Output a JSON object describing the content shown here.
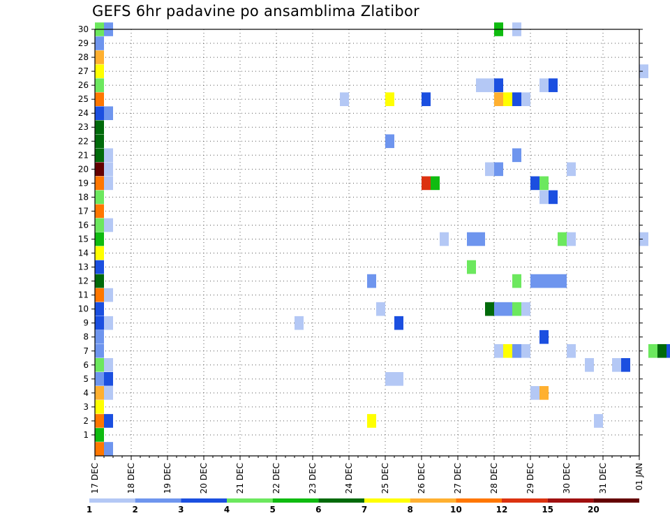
{
  "title": "GEFS 6hr padavine po ansamblima Zlatibor",
  "chart_data": {
    "type": "heatmap",
    "title": "GEFS 6hr padavine po ansamblima Zlatibor",
    "ylim": [
      0,
      30
    ],
    "y_ticks": [
      1,
      2,
      3,
      4,
      5,
      6,
      7,
      8,
      9,
      10,
      11,
      12,
      13,
      14,
      15,
      16,
      17,
      18,
      19,
      20,
      21,
      22,
      23,
      24,
      25,
      26,
      27,
      28,
      29,
      30
    ],
    "x_ticks": [
      "17 DEC",
      "18 DEC",
      "19 DEC",
      "20 DEC",
      "21 DEC",
      "22 DEC",
      "23 DEC",
      "24 DEC",
      "25 DEC",
      "26 DEC",
      "27 DEC",
      "28 DEC",
      "29 DEC",
      "30 DEC",
      "31 DEC",
      "01 JAN"
    ],
    "time_step_hours": 6,
    "grid": "dotted",
    "legend": {
      "placement": "bottom",
      "levels": [
        "1",
        "2",
        "3",
        "4",
        "5",
        "6",
        "7",
        "8",
        "10",
        "12",
        "15",
        "20"
      ],
      "colors": [
        "#b4c8f5",
        "#6e95ee",
        "#1b4fe0",
        "#6ce85e",
        "#0fbb10",
        "#006a0a",
        "#ffff00",
        "#ffb030",
        "#ff7700",
        "#dc3210",
        "#a01010",
        "#640000"
      ]
    },
    "cells": [
      {
        "member": 0,
        "step": 0,
        "class": 9
      },
      {
        "member": 0,
        "step": 1,
        "class": 2
      },
      {
        "member": 1,
        "step": 0,
        "class": 5
      },
      {
        "member": 2,
        "step": 0,
        "class": 9
      },
      {
        "member": 2,
        "step": 1,
        "class": 3
      },
      {
        "member": 3,
        "step": 0,
        "class": 7
      },
      {
        "member": 4,
        "step": 0,
        "class": 8
      },
      {
        "member": 4,
        "step": 1,
        "class": 1
      },
      {
        "member": 5,
        "step": 0,
        "class": 2
      },
      {
        "member": 5,
        "step": 1,
        "class": 3
      },
      {
        "member": 6,
        "step": 0,
        "class": 4
      },
      {
        "member": 6,
        "step": 1,
        "class": 1
      },
      {
        "member": 7,
        "step": 0,
        "class": 2
      },
      {
        "member": 8,
        "step": 0,
        "class": 2
      },
      {
        "member": 9,
        "step": 0,
        "class": 3
      },
      {
        "member": 9,
        "step": 1,
        "class": 1
      },
      {
        "member": 10,
        "step": 0,
        "class": 3
      },
      {
        "member": 11,
        "step": 0,
        "class": 9
      },
      {
        "member": 11,
        "step": 1,
        "class": 1
      },
      {
        "member": 12,
        "step": 0,
        "class": 6
      },
      {
        "member": 13,
        "step": 0,
        "class": 3
      },
      {
        "member": 14,
        "step": 0,
        "class": 7
      },
      {
        "member": 15,
        "step": 0,
        "class": 5
      },
      {
        "member": 16,
        "step": 0,
        "class": 4
      },
      {
        "member": 16,
        "step": 1,
        "class": 1
      },
      {
        "member": 17,
        "step": 0,
        "class": 9
      },
      {
        "member": 18,
        "step": 0,
        "class": 4
      },
      {
        "member": 19,
        "step": 0,
        "class": 9
      },
      {
        "member": 19,
        "step": 1,
        "class": 1
      },
      {
        "member": 20,
        "step": 0,
        "class": 12
      },
      {
        "member": 20,
        "step": 1,
        "class": 1
      },
      {
        "member": 21,
        "step": 0,
        "class": 6
      },
      {
        "member": 21,
        "step": 1,
        "class": 1
      },
      {
        "member": 22,
        "step": 0,
        "class": 6
      },
      {
        "member": 23,
        "step": 0,
        "class": 6
      },
      {
        "member": 24,
        "step": 0,
        "class": 3
      },
      {
        "member": 24,
        "step": 1,
        "class": 2
      },
      {
        "member": 25,
        "step": 0,
        "class": 9
      },
      {
        "member": 26,
        "step": 0,
        "class": 4
      },
      {
        "member": 27,
        "step": 0,
        "class": 7
      },
      {
        "member": 28,
        "step": 0,
        "class": 8
      },
      {
        "member": 29,
        "step": 0,
        "class": 2
      },
      {
        "member": 30,
        "step": 0,
        "class": 4
      },
      {
        "member": 30,
        "step": 1,
        "class": 2
      },
      {
        "member": 2,
        "step": 30,
        "class": 7
      },
      {
        "member": 2,
        "step": 55,
        "class": 1
      },
      {
        "member": 4,
        "step": 48,
        "class": 1
      },
      {
        "member": 4,
        "step": 49,
        "class": 8
      },
      {
        "member": 5,
        "step": 32,
        "class": 1
      },
      {
        "member": 5,
        "step": 33,
        "class": 1
      },
      {
        "member": 6,
        "step": 54,
        "class": 1
      },
      {
        "member": 6,
        "step": 57,
        "class": 1
      },
      {
        "member": 6,
        "step": 58,
        "class": 3
      },
      {
        "member": 7,
        "step": 44,
        "class": 1
      },
      {
        "member": 7,
        "step": 45,
        "class": 7
      },
      {
        "member": 7,
        "step": 46,
        "class": 2
      },
      {
        "member": 7,
        "step": 47,
        "class": 1
      },
      {
        "member": 7,
        "step": 52,
        "class": 1
      },
      {
        "member": 7,
        "step": 61,
        "class": 4
      },
      {
        "member": 7,
        "step": 62,
        "class": 6
      },
      {
        "member": 7,
        "step": 63,
        "class": 3
      },
      {
        "member": 8,
        "step": 49,
        "class": 3
      },
      {
        "member": 9,
        "step": 22,
        "class": 1
      },
      {
        "member": 9,
        "step": 33,
        "class": 3
      },
      {
        "member": 10,
        "step": 31,
        "class": 1
      },
      {
        "member": 10,
        "step": 43,
        "class": 6
      },
      {
        "member": 10,
        "step": 44,
        "class": 2
      },
      {
        "member": 10,
        "step": 45,
        "class": 2
      },
      {
        "member": 10,
        "step": 46,
        "class": 4
      },
      {
        "member": 10,
        "step": 47,
        "class": 1
      },
      {
        "member": 12,
        "step": 30,
        "class": 2
      },
      {
        "member": 12,
        "step": 46,
        "class": 4
      },
      {
        "member": 12,
        "step": 48,
        "class": 2
      },
      {
        "member": 12,
        "step": 49,
        "class": 2
      },
      {
        "member": 12,
        "step": 50,
        "class": 2
      },
      {
        "member": 12,
        "step": 51,
        "class": 2
      },
      {
        "member": 13,
        "step": 41,
        "class": 4
      },
      {
        "member": 15,
        "step": 38,
        "class": 1
      },
      {
        "member": 15,
        "step": 41,
        "class": 2
      },
      {
        "member": 15,
        "step": 42,
        "class": 2
      },
      {
        "member": 15,
        "step": 51,
        "class": 4
      },
      {
        "member": 15,
        "step": 52,
        "class": 1
      },
      {
        "member": 15,
        "step": 60,
        "class": 1
      },
      {
        "member": 18,
        "step": 49,
        "class": 1
      },
      {
        "member": 18,
        "step": 50,
        "class": 3
      },
      {
        "member": 19,
        "step": 36,
        "class": 10
      },
      {
        "member": 19,
        "step": 37,
        "class": 5
      },
      {
        "member": 19,
        "step": 48,
        "class": 3
      },
      {
        "member": 19,
        "step": 49,
        "class": 4
      },
      {
        "member": 20,
        "step": 43,
        "class": 1
      },
      {
        "member": 20,
        "step": 44,
        "class": 2
      },
      {
        "member": 20,
        "step": 52,
        "class": 1
      },
      {
        "member": 21,
        "step": 46,
        "class": 2
      },
      {
        "member": 22,
        "step": 32,
        "class": 2
      },
      {
        "member": 25,
        "step": 27,
        "class": 1
      },
      {
        "member": 25,
        "step": 32,
        "class": 7
      },
      {
        "member": 25,
        "step": 36,
        "class": 3
      },
      {
        "member": 25,
        "step": 44,
        "class": 8
      },
      {
        "member": 25,
        "step": 45,
        "class": 7
      },
      {
        "member": 25,
        "step": 46,
        "class": 3
      },
      {
        "member": 25,
        "step": 47,
        "class": 1
      },
      {
        "member": 26,
        "step": 42,
        "class": 1
      },
      {
        "member": 26,
        "step": 43,
        "class": 1
      },
      {
        "member": 26,
        "step": 44,
        "class": 3
      },
      {
        "member": 26,
        "step": 49,
        "class": 1
      },
      {
        "member": 26,
        "step": 50,
        "class": 3
      },
      {
        "member": 27,
        "step": 60,
        "class": 1
      },
      {
        "member": 30,
        "step": 44,
        "class": 5
      },
      {
        "member": 30,
        "step": 46,
        "class": 1
      }
    ]
  }
}
